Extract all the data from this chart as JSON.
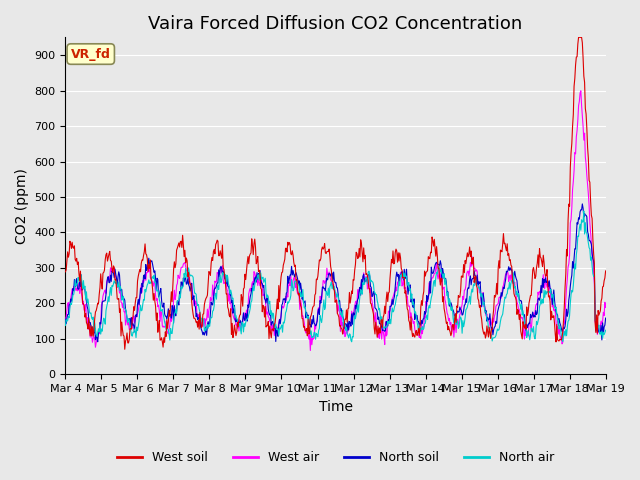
{
  "title": "Vaira Forced Diffusion CO2 Concentration",
  "xlabel": "Time",
  "ylabel": "CO2 (ppm)",
  "ylim": [
    0,
    950
  ],
  "yticks": [
    0,
    100,
    200,
    300,
    400,
    500,
    600,
    700,
    800,
    900
  ],
  "date_labels": [
    "Mar 4",
    "Mar 5",
    "Mar 6",
    "Mar 7",
    "Mar 8",
    "Mar 9",
    "Mar 10",
    "Mar 11",
    "Mar 12",
    "Mar 13",
    "Mar 14",
    "Mar 15",
    "Mar 16",
    "Mar 17",
    "Mar 18",
    "Mar 19"
  ],
  "colors": {
    "west_soil": "#dd0000",
    "west_air": "#ff00ff",
    "north_soil": "#0000cc",
    "north_air": "#00cccc"
  },
  "legend_labels": [
    "West soil",
    "West air",
    "North soil",
    "North air"
  ],
  "annotation_text": "VR_fd",
  "annotation_color": "#cc2200",
  "annotation_bg": "#ffffcc",
  "bg_color": "#e8e8e8",
  "grid_color": "#ffffff",
  "n_points_per_day": 48,
  "n_days": 15,
  "title_fontsize": 13,
  "axis_fontsize": 10,
  "tick_fontsize": 8
}
